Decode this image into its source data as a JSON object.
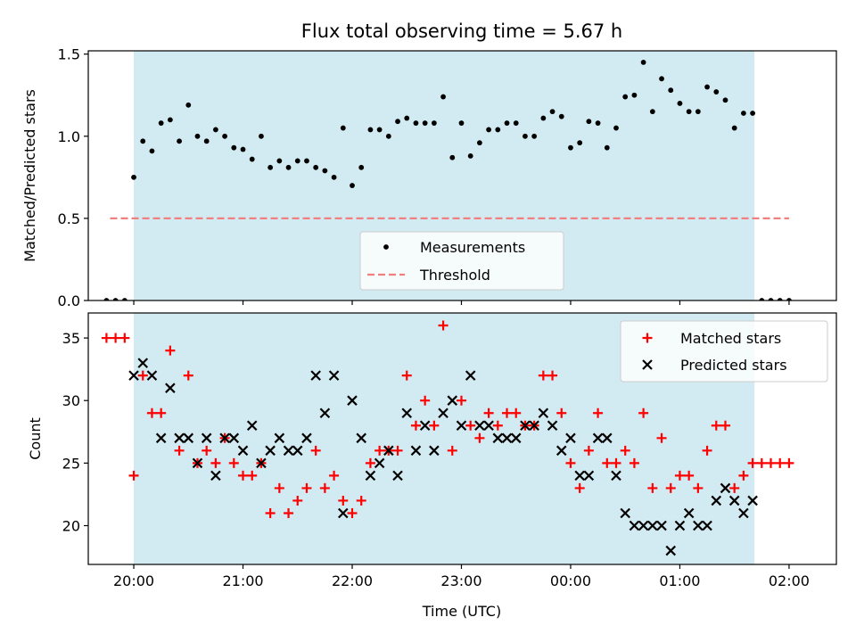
{
  "figure": {
    "title": "Flux total observing time = 5.67 h",
    "xlabel": "Time (UTC)"
  },
  "chart_data": [
    {
      "type": "scatter",
      "ylabel": "Matched/Predicted stars",
      "xlim": [
        "19:35",
        "02:26"
      ],
      "ylim": [
        0,
        1.52
      ],
      "yticks": [
        "0.0",
        "0.5",
        "1.0",
        "1.5"
      ],
      "xticks": [
        "20:00",
        "21:00",
        "22:00",
        "23:00",
        "00:00",
        "01:00",
        "02:00"
      ],
      "shaded_span": [
        "20:00",
        "01:41"
      ],
      "shade_color": "#add8e6",
      "legend_position": "lower center",
      "series": [
        {
          "name": "Measurements",
          "color": "#000000",
          "x": [
            "19:45",
            "19:50",
            "19:55",
            "20:00",
            "20:05",
            "20:10",
            "20:15",
            "20:20",
            "20:25",
            "20:30",
            "20:35",
            "20:40",
            "20:45",
            "20:50",
            "20:55",
            "21:00",
            "21:05",
            "21:10",
            "21:15",
            "21:20",
            "21:25",
            "21:30",
            "21:35",
            "21:40",
            "21:45",
            "21:50",
            "21:55",
            "22:00",
            "22:05",
            "22:10",
            "22:15",
            "22:20",
            "22:25",
            "22:30",
            "22:35",
            "22:40",
            "22:45",
            "22:50",
            "22:55",
            "23:00",
            "23:05",
            "23:10",
            "23:15",
            "23:20",
            "23:25",
            "23:30",
            "23:35",
            "23:40",
            "23:45",
            "23:50",
            "23:55",
            "00:00",
            "00:05",
            "00:10",
            "00:15",
            "00:20",
            "00:25",
            "00:30",
            "00:35",
            "00:40",
            "00:45",
            "00:50",
            "00:55",
            "01:00",
            "01:05",
            "01:10",
            "01:15",
            "01:20",
            "01:25",
            "01:30",
            "01:35",
            "01:40",
            "01:45",
            "01:50",
            "01:55",
            "02:00"
          ],
          "y": [
            0.0,
            0.0,
            0.0,
            0.75,
            0.97,
            0.91,
            1.08,
            1.1,
            0.97,
            1.19,
            1.0,
            0.97,
            1.04,
            1.0,
            0.93,
            0.92,
            0.86,
            1.0,
            0.81,
            0.85,
            0.81,
            0.85,
            0.85,
            0.81,
            0.79,
            0.75,
            1.05,
            0.7,
            0.81,
            1.04,
            1.04,
            1.0,
            1.09,
            1.11,
            1.08,
            1.08,
            1.08,
            1.24,
            0.87,
            1.08,
            0.88,
            0.96,
            1.04,
            1.04,
            1.08,
            1.08,
            1.0,
            1.0,
            1.11,
            1.15,
            1.12,
            0.93,
            0.96,
            1.09,
            1.08,
            0.93,
            1.05,
            1.24,
            1.25,
            1.45,
            1.15,
            1.35,
            1.28,
            1.2,
            1.15,
            1.15,
            1.3,
            1.27,
            1.22,
            1.05,
            1.14,
            1.14,
            0.0,
            0.0,
            0.0,
            0.0
          ]
        },
        {
          "name": "Threshold",
          "color": "#f08080",
          "x": [
            "19:47",
            "02:00"
          ],
          "y": [
            0.5,
            0.5
          ]
        }
      ]
    },
    {
      "type": "scatter",
      "ylabel": "Count",
      "xlim": [
        "19:35",
        "02:26"
      ],
      "ylim": [
        16.9,
        37.0
      ],
      "yticks": [
        "20",
        "25",
        "30",
        "35"
      ],
      "xticks": [
        "20:00",
        "21:00",
        "22:00",
        "23:00",
        "00:00",
        "01:00",
        "02:00"
      ],
      "shaded_span": [
        "20:00",
        "01:41"
      ],
      "shade_color": "#add8e6",
      "legend_position": "upper right",
      "series": [
        {
          "name": "Matched stars",
          "color": "#ff0000",
          "marker": "+",
          "x": [
            "19:45",
            "19:50",
            "19:55",
            "20:00",
            "20:05",
            "20:10",
            "20:15",
            "20:20",
            "20:25",
            "20:30",
            "20:35",
            "20:40",
            "20:45",
            "20:50",
            "20:55",
            "21:00",
            "21:05",
            "21:10",
            "21:15",
            "21:20",
            "21:25",
            "21:30",
            "21:35",
            "21:40",
            "21:45",
            "21:50",
            "21:55",
            "22:00",
            "22:05",
            "22:10",
            "22:15",
            "22:20",
            "22:25",
            "22:30",
            "22:35",
            "22:40",
            "22:45",
            "22:50",
            "22:55",
            "23:00",
            "23:05",
            "23:10",
            "23:15",
            "23:20",
            "23:25",
            "23:30",
            "23:35",
            "23:40",
            "23:45",
            "23:50",
            "23:55",
            "00:00",
            "00:05",
            "00:10",
            "00:15",
            "00:20",
            "00:25",
            "00:30",
            "00:35",
            "00:40",
            "00:45",
            "00:50",
            "00:55",
            "01:00",
            "01:05",
            "01:10",
            "01:15",
            "01:20",
            "01:25",
            "01:30",
            "01:35",
            "01:40",
            "01:45",
            "01:50",
            "01:55",
            "02:00"
          ],
          "y": [
            35,
            35,
            35,
            24,
            32,
            29,
            29,
            34,
            26,
            32,
            25,
            26,
            25,
            27,
            25,
            24,
            24,
            25,
            21,
            23,
            21,
            22,
            23,
            26,
            23,
            24,
            22,
            21,
            22,
            25,
            26,
            26,
            26,
            32,
            28,
            30,
            28,
            36,
            26,
            30,
            28,
            27,
            29,
            28,
            29,
            29,
            28,
            28,
            32,
            32,
            29,
            25,
            23,
            26,
            29,
            25,
            25,
            26,
            25,
            29,
            23,
            27,
            23,
            24,
            24,
            23,
            26,
            28,
            28,
            23,
            24,
            25,
            25,
            25,
            25,
            25
          ]
        },
        {
          "name": "Predicted stars",
          "color": "#000000",
          "marker": "x",
          "x": [
            "20:00",
            "20:05",
            "20:10",
            "20:15",
            "20:20",
            "20:25",
            "20:30",
            "20:35",
            "20:40",
            "20:45",
            "20:50",
            "20:55",
            "21:00",
            "21:05",
            "21:10",
            "21:15",
            "21:20",
            "21:25",
            "21:30",
            "21:35",
            "21:40",
            "21:45",
            "21:50",
            "21:55",
            "22:00",
            "22:05",
            "22:10",
            "22:15",
            "22:20",
            "22:25",
            "22:30",
            "22:35",
            "22:40",
            "22:45",
            "22:50",
            "22:55",
            "23:00",
            "23:05",
            "23:10",
            "23:15",
            "23:20",
            "23:25",
            "23:30",
            "23:35",
            "23:40",
            "23:45",
            "23:50",
            "23:55",
            "00:00",
            "00:05",
            "00:10",
            "00:15",
            "00:20",
            "00:25",
            "00:30",
            "00:35",
            "00:40",
            "00:45",
            "00:50",
            "00:55",
            "01:00",
            "01:05",
            "01:10",
            "01:15",
            "01:20",
            "01:25",
            "01:30",
            "01:35",
            "01:40"
          ],
          "y": [
            32,
            33,
            32,
            27,
            31,
            27,
            27,
            25,
            27,
            24,
            27,
            27,
            26,
            28,
            25,
            26,
            27,
            26,
            26,
            27,
            32,
            29,
            32,
            21,
            30,
            27,
            24,
            25,
            26,
            24,
            29,
            26,
            28,
            26,
            29,
            30,
            28,
            32,
            28,
            28,
            27,
            27,
            27,
            28,
            28,
            29,
            28,
            26,
            27,
            24,
            24,
            27,
            27,
            24,
            21,
            20,
            20,
            20,
            20,
            18,
            20,
            21,
            20,
            20,
            22,
            23,
            22,
            21,
            22
          ]
        }
      ]
    }
  ]
}
